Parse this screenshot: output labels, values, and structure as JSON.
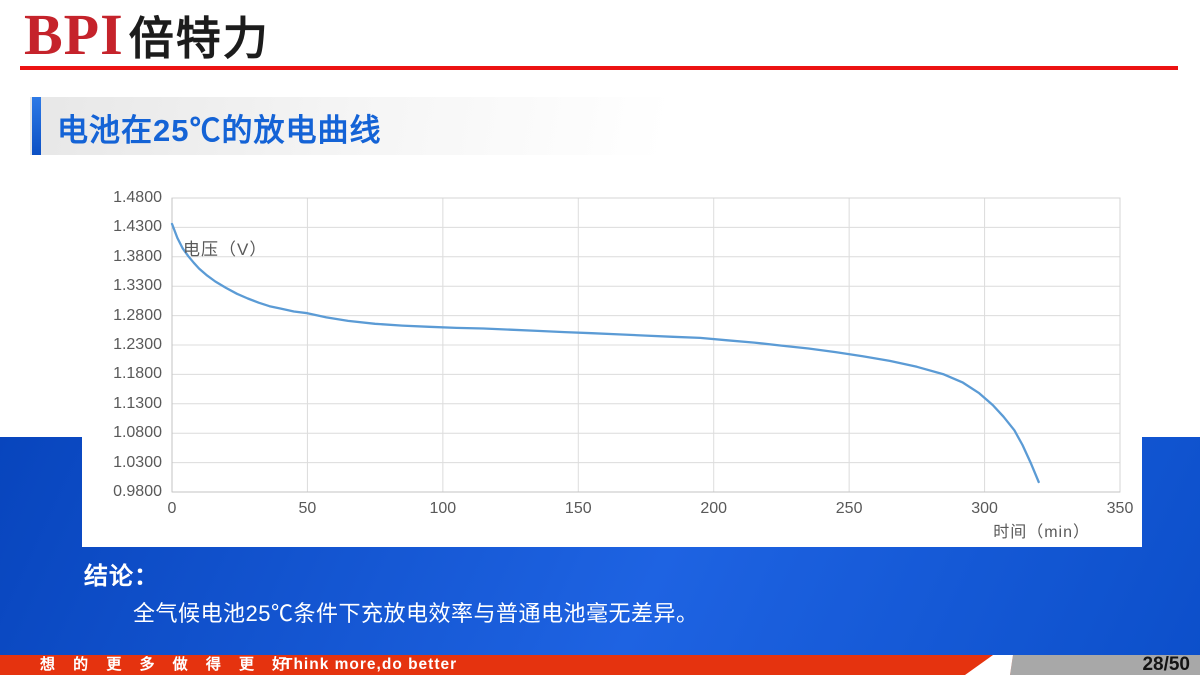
{
  "colors": {
    "logo_red": "#c5232b",
    "rule_red": "#ec1212",
    "title_blue": "#1463d6",
    "slide_blue": "#1154d2",
    "curve_blue": "#5b9bd5",
    "footer_red": "#e5330f",
    "footer_gray": "#a8a8a8"
  },
  "logo": {
    "text_en": "BPI",
    "text_cn": "倍特力"
  },
  "slide_title": "电池在25℃的放电曲线",
  "chart_data": {
    "type": "line",
    "title": "",
    "xlabel": "时间（min）",
    "ylabel": "电压（V）",
    "xlim": [
      0,
      350
    ],
    "ylim": [
      0.98,
      1.48
    ],
    "x_ticks": [
      0,
      50,
      100,
      150,
      200,
      250,
      300,
      350
    ],
    "y_ticks": [
      "1.4800",
      "1.4300",
      "1.3800",
      "1.3300",
      "1.2800",
      "1.2300",
      "1.1800",
      "1.1300",
      "1.0800",
      "1.0300",
      "0.9800"
    ],
    "grid": true,
    "legend": "none",
    "series": [
      {
        "color": "#5b9bd5",
        "points": [
          [
            0,
            1.436
          ],
          [
            2,
            1.412
          ],
          [
            4,
            1.394
          ],
          [
            6,
            1.381
          ],
          [
            8,
            1.37
          ],
          [
            10,
            1.36
          ],
          [
            13,
            1.348
          ],
          [
            16,
            1.338
          ],
          [
            20,
            1.327
          ],
          [
            24,
            1.317
          ],
          [
            28,
            1.309
          ],
          [
            32,
            1.302
          ],
          [
            36,
            1.296
          ],
          [
            40,
            1.292
          ],
          [
            45,
            1.287
          ],
          [
            50,
            1.284
          ],
          [
            57,
            1.277
          ],
          [
            65,
            1.271
          ],
          [
            75,
            1.266
          ],
          [
            85,
            1.263
          ],
          [
            95,
            1.261
          ],
          [
            105,
            1.259
          ],
          [
            115,
            1.258
          ],
          [
            125,
            1.256
          ],
          [
            135,
            1.254
          ],
          [
            145,
            1.252
          ],
          [
            155,
            1.25
          ],
          [
            165,
            1.248
          ],
          [
            175,
            1.246
          ],
          [
            185,
            1.244
          ],
          [
            195,
            1.242
          ],
          [
            205,
            1.238
          ],
          [
            215,
            1.234
          ],
          [
            225,
            1.229
          ],
          [
            235,
            1.224
          ],
          [
            245,
            1.218
          ],
          [
            255,
            1.211
          ],
          [
            265,
            1.203
          ],
          [
            275,
            1.193
          ],
          [
            285,
            1.18
          ],
          [
            292,
            1.166
          ],
          [
            298,
            1.148
          ],
          [
            303,
            1.128
          ],
          [
            307,
            1.108
          ],
          [
            311,
            1.085
          ],
          [
            314,
            1.06
          ],
          [
            317,
            1.03
          ],
          [
            320,
            0.997
          ]
        ]
      }
    ]
  },
  "conclusion": {
    "heading": "结论：",
    "body": "全气候电池25℃条件下充放电效率与普通电池毫无差异。"
  },
  "footer": {
    "slogan_cn": "想 的 更 多  做 得 更 好",
    "slogan_en": "Think more,do better",
    "page_number": "28/50"
  }
}
